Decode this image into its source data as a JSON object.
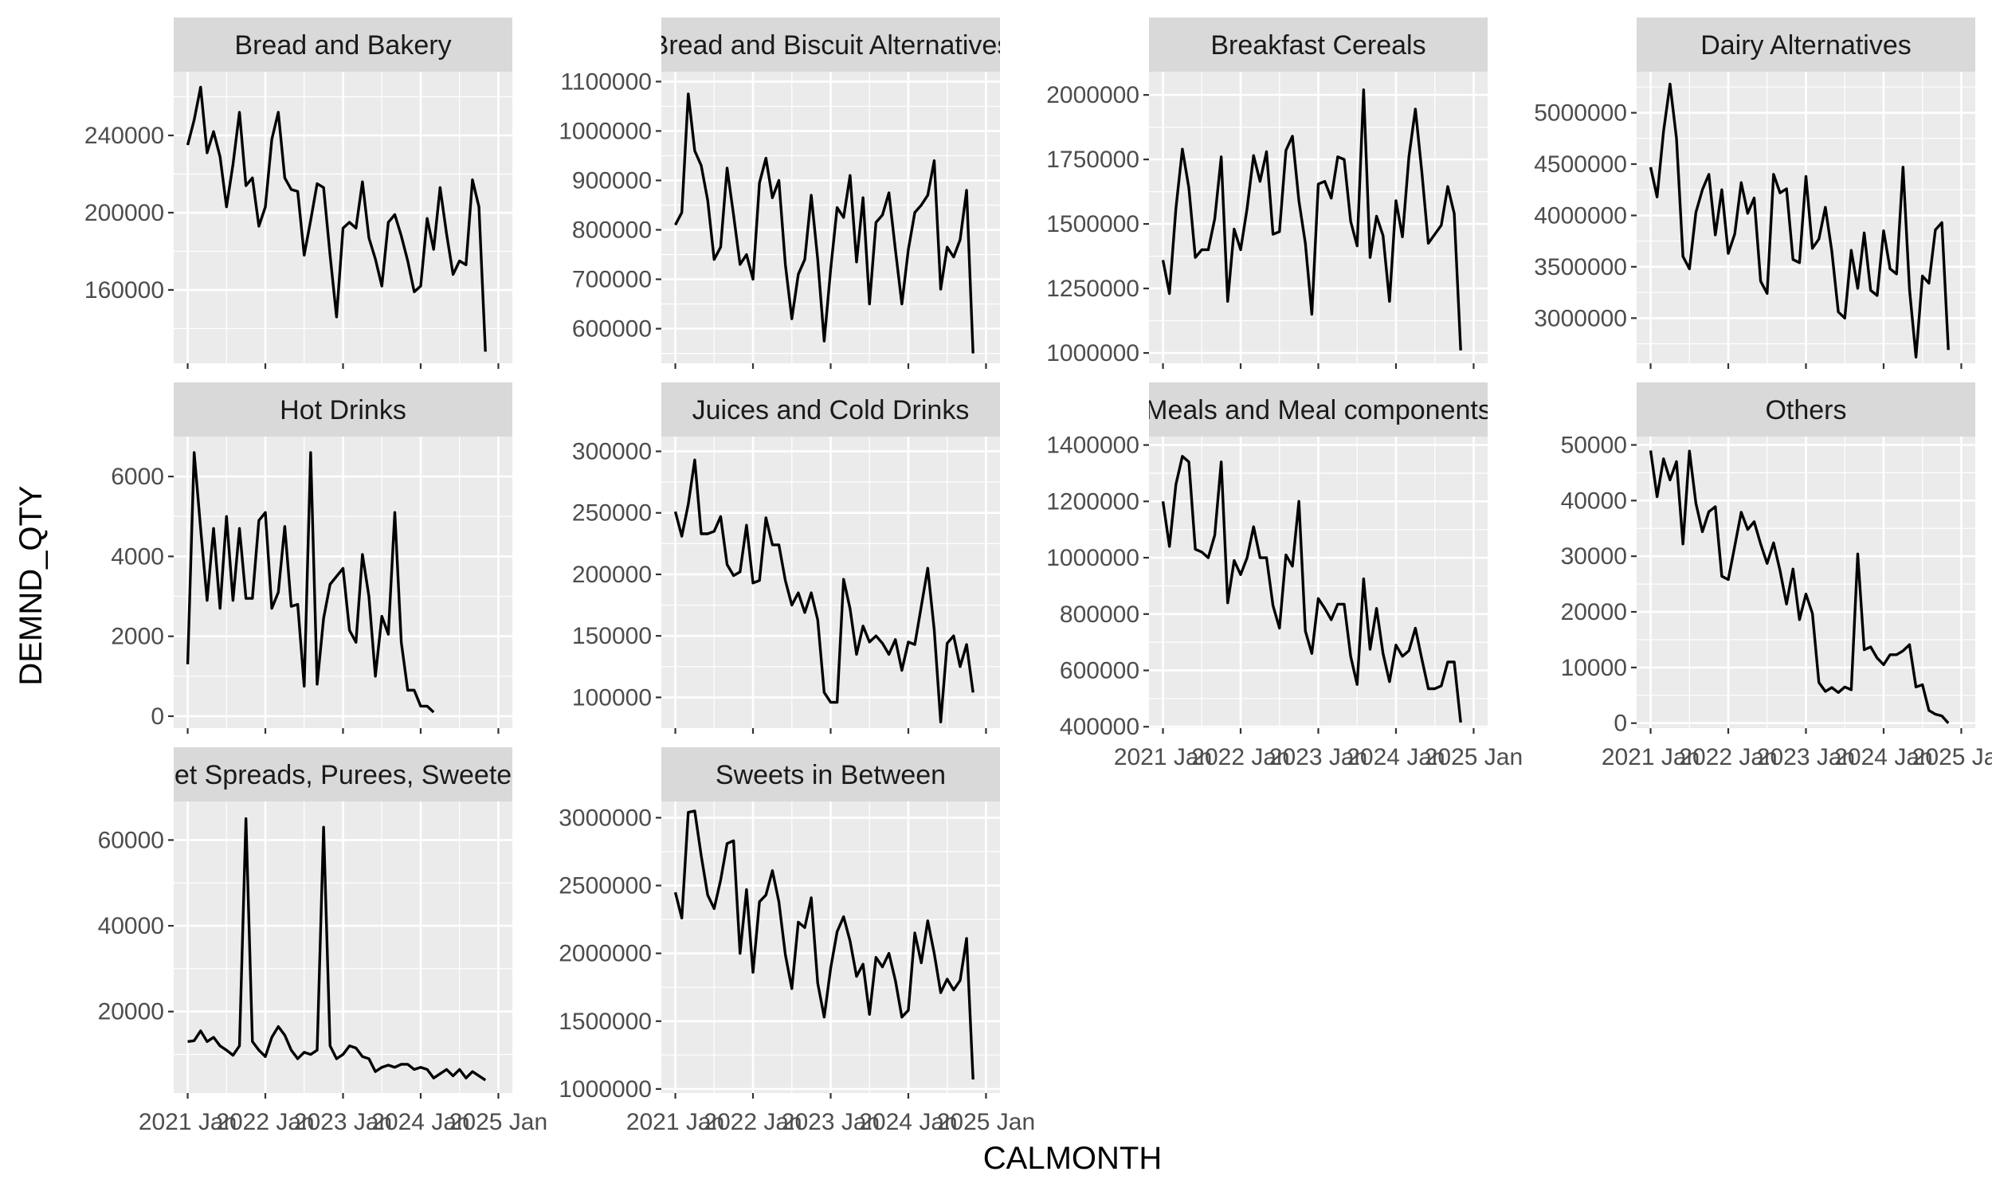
{
  "chart_data": {
    "type": "line",
    "facet": true,
    "xlabel": "CALMONTH",
    "ylabel": "DEMND_QTY",
    "x_start": "2021 Jan",
    "x_end": "2024 Dec",
    "x_ticks": [
      "2021 Jan",
      "2022 Jan",
      "2023 Jan",
      "2024 Jan",
      "2025 Jan"
    ],
    "grid": true,
    "scales": "free_y",
    "panels": [
      {
        "title": "Bread and Bakery",
        "y_ticks": [
          160000,
          200000,
          240000
        ],
        "ylim": [
          122000,
          273000
        ],
        "values": [
          235000,
          248000,
          265000,
          231000,
          242000,
          229000,
          203000,
          225000,
          252000,
          214000,
          218000,
          193000,
          203000,
          238000,
          252000,
          218000,
          212000,
          211000,
          178000,
          196000,
          215000,
          213000,
          178000,
          146000,
          192000,
          195000,
          192000,
          216000,
          187000,
          176000,
          162000,
          195000,
          199000,
          188000,
          175000,
          159000,
          162000,
          197000,
          181000,
          213000,
          189000,
          168000,
          175000,
          173000,
          217000,
          203000,
          128000
        ]
      },
      {
        "title": "Bread and Biscuit Alternatives",
        "y_ticks": [
          600000,
          700000,
          800000,
          900000,
          1000000,
          1100000
        ],
        "ylim": [
          530000,
          1120000
        ],
        "values": [
          810000,
          835000,
          1075000,
          960000,
          930000,
          860000,
          740000,
          765000,
          925000,
          830000,
          730000,
          750000,
          700000,
          895000,
          945000,
          865000,
          900000,
          730000,
          620000,
          710000,
          740000,
          870000,
          740000,
          575000,
          720000,
          845000,
          825000,
          910000,
          735000,
          865000,
          650000,
          815000,
          830000,
          875000,
          760000,
          650000,
          760000,
          835000,
          850000,
          870000,
          940000,
          680000,
          765000,
          745000,
          780000,
          880000,
          550000
        ]
      },
      {
        "title": "Breakfast Cereals",
        "y_ticks": [
          1000000,
          1250000,
          1500000,
          1750000,
          2000000
        ],
        "ylim": [
          960000,
          2090000
        ],
        "values": [
          1360000,
          1230000,
          1560000,
          1790000,
          1640000,
          1370000,
          1400000,
          1400000,
          1520000,
          1760000,
          1200000,
          1480000,
          1400000,
          1560000,
          1765000,
          1665000,
          1780000,
          1460000,
          1470000,
          1785000,
          1840000,
          1590000,
          1425000,
          1150000,
          1655000,
          1665000,
          1600000,
          1760000,
          1750000,
          1510000,
          1415000,
          2020000,
          1370000,
          1530000,
          1455000,
          1200000,
          1590000,
          1450000,
          1760000,
          1945000,
          1700000,
          1425000,
          1460000,
          1495000,
          1645000,
          1540000,
          1010000
        ]
      },
      {
        "title": "Dairy Alternatives",
        "y_ticks": [
          3000000,
          3500000,
          4000000,
          4500000,
          5000000
        ],
        "ylim": [
          2560000,
          5400000
        ],
        "values": [
          4470000,
          4180000,
          4820000,
          5280000,
          4750000,
          3600000,
          3480000,
          4030000,
          4250000,
          4400000,
          3810000,
          4250000,
          3630000,
          3820000,
          4320000,
          4020000,
          4170000,
          3360000,
          3240000,
          4400000,
          4220000,
          4260000,
          3570000,
          3540000,
          4380000,
          3680000,
          3770000,
          4080000,
          3650000,
          3060000,
          3000000,
          3660000,
          3290000,
          3830000,
          3270000,
          3220000,
          3850000,
          3480000,
          3430000,
          4470000,
          3280000,
          2620000,
          3410000,
          3340000,
          3860000,
          3930000,
          2690000
        ]
      },
      {
        "title": "Hot Drinks",
        "y_ticks": [
          0,
          2000,
          4000,
          6000
        ],
        "ylim": [
          -300,
          7000
        ],
        "values": [
          1300,
          6600,
          4700,
          2900,
          4700,
          2700,
          5000,
          2900,
          4700,
          2950,
          2950,
          4900,
          5100,
          2700,
          3100,
          4750,
          2750,
          2800,
          750,
          6600,
          800,
          2450,
          3300,
          3500,
          3700,
          2150,
          1850,
          4050,
          3000,
          1000,
          2500,
          2050,
          5100,
          1850,
          650,
          650,
          250,
          250,
          100
        ]
      },
      {
        "title": "Juices and Cold Drinks",
        "y_ticks": [
          100000,
          150000,
          200000,
          250000,
          300000
        ],
        "ylim": [
          75000,
          312000
        ],
        "values": [
          251000,
          231000,
          257000,
          293000,
          233000,
          233000,
          235000,
          247000,
          208000,
          199000,
          202000,
          240000,
          193000,
          195000,
          246000,
          224000,
          224000,
          195000,
          175000,
          185000,
          169000,
          185000,
          163000,
          104000,
          96000,
          96000,
          196000,
          172000,
          135000,
          158000,
          145000,
          150000,
          144000,
          135000,
          147000,
          122000,
          145000,
          143000,
          174000,
          205000,
          155000,
          80000,
          144000,
          150000,
          125000,
          143000,
          104000
        ]
      },
      {
        "title": "Meals and Meal components",
        "y_ticks": [
          400000,
          600000,
          800000,
          1000000,
          1200000,
          1400000
        ],
        "ylim": [
          395000,
          1430000
        ],
        "values": [
          1200000,
          1040000,
          1260000,
          1360000,
          1340000,
          1030000,
          1020000,
          1000000,
          1080000,
          1340000,
          840000,
          990000,
          940000,
          1000000,
          1110000,
          1000000,
          1000000,
          830000,
          750000,
          1010000,
          970000,
          1200000,
          740000,
          660000,
          855000,
          820000,
          780000,
          835000,
          835000,
          650000,
          550000,
          925000,
          675000,
          820000,
          660000,
          560000,
          690000,
          650000,
          670000,
          750000,
          640000,
          535000,
          535000,
          545000,
          630000,
          630000,
          415000
        ]
      },
      {
        "title": "Others",
        "y_ticks": [
          0,
          10000,
          20000,
          30000,
          40000,
          50000
        ],
        "ylim": [
          -900,
          51500
        ],
        "values": [
          49000,
          40700,
          47500,
          43700,
          47000,
          32200,
          48900,
          39500,
          34400,
          38000,
          38900,
          26400,
          25800,
          31800,
          37900,
          34800,
          36200,
          32200,
          28700,
          32400,
          27400,
          21400,
          27700,
          18600,
          23200,
          19700,
          7300,
          5700,
          6400,
          5500,
          6500,
          6000,
          30400,
          13200,
          13700,
          11700,
          10500,
          12300,
          12300,
          13000,
          14100,
          6500,
          6900,
          2300,
          1600,
          1300,
          0
        ]
      },
      {
        "title": "Sweet Spreads, Purees, Sweeteners",
        "y_ticks": [
          20000,
          40000,
          60000
        ],
        "ylim": [
          1000,
          69000
        ],
        "values": [
          13000,
          13200,
          15500,
          13000,
          14000,
          12000,
          11000,
          9800,
          12000,
          65000,
          13000,
          11000,
          9500,
          14000,
          16500,
          14500,
          11000,
          9000,
          10500,
          10000,
          11000,
          63000,
          12000,
          9000,
          10000,
          12000,
          11500,
          9500,
          9000,
          6000,
          7000,
          7500,
          7000,
          7700,
          7700,
          6500,
          7000,
          6500,
          4500,
          5500,
          6500,
          5000,
          6500,
          4500,
          6000,
          5000,
          4000
        ]
      },
      {
        "title": "Sweets in Between",
        "y_ticks": [
          1000000,
          1500000,
          2000000,
          2500000,
          3000000
        ],
        "ylim": [
          970000,
          3120000
        ],
        "values": [
          2450000,
          2260000,
          3040000,
          3050000,
          2720000,
          2430000,
          2330000,
          2540000,
          2810000,
          2830000,
          2000000,
          2470000,
          1860000,
          2380000,
          2430000,
          2610000,
          2380000,
          1990000,
          1740000,
          2230000,
          2190000,
          2410000,
          1780000,
          1530000,
          1890000,
          2160000,
          2270000,
          2090000,
          1830000,
          1920000,
          1550000,
          1970000,
          1900000,
          2000000,
          1800000,
          1530000,
          1580000,
          2150000,
          1930000,
          2240000,
          2000000,
          1710000,
          1810000,
          1730000,
          1800000,
          2110000,
          1070000
        ]
      }
    ]
  }
}
